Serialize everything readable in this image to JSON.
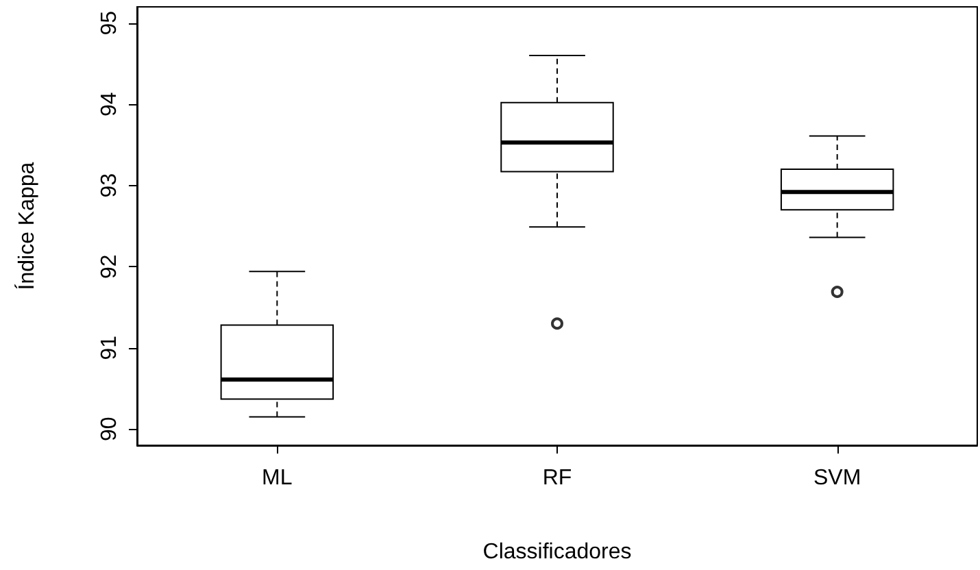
{
  "chart_data": {
    "type": "box",
    "xlabel": "Classificadores",
    "ylabel": "Índice Kappa",
    "categories": [
      "ML",
      "RF",
      "SVM"
    ],
    "boxes": [
      {
        "low": 90.15,
        "q1": 90.37,
        "median": 90.61,
        "q3": 91.28,
        "high": 91.94
      },
      {
        "low": 92.49,
        "q1": 93.17,
        "median": 93.53,
        "q3": 94.02,
        "high": 94.6,
        "outliers": [
          91.3
        ]
      },
      {
        "low": 92.36,
        "q1": 92.7,
        "median": 92.92,
        "q3": 93.2,
        "high": 93.61,
        "outliers": [
          91.69
        ]
      }
    ],
    "ylim": [
      89.8,
      95.2
    ],
    "yticks": [
      90,
      91,
      92,
      93,
      94,
      95
    ],
    "grid": false,
    "marker": "circle"
  }
}
